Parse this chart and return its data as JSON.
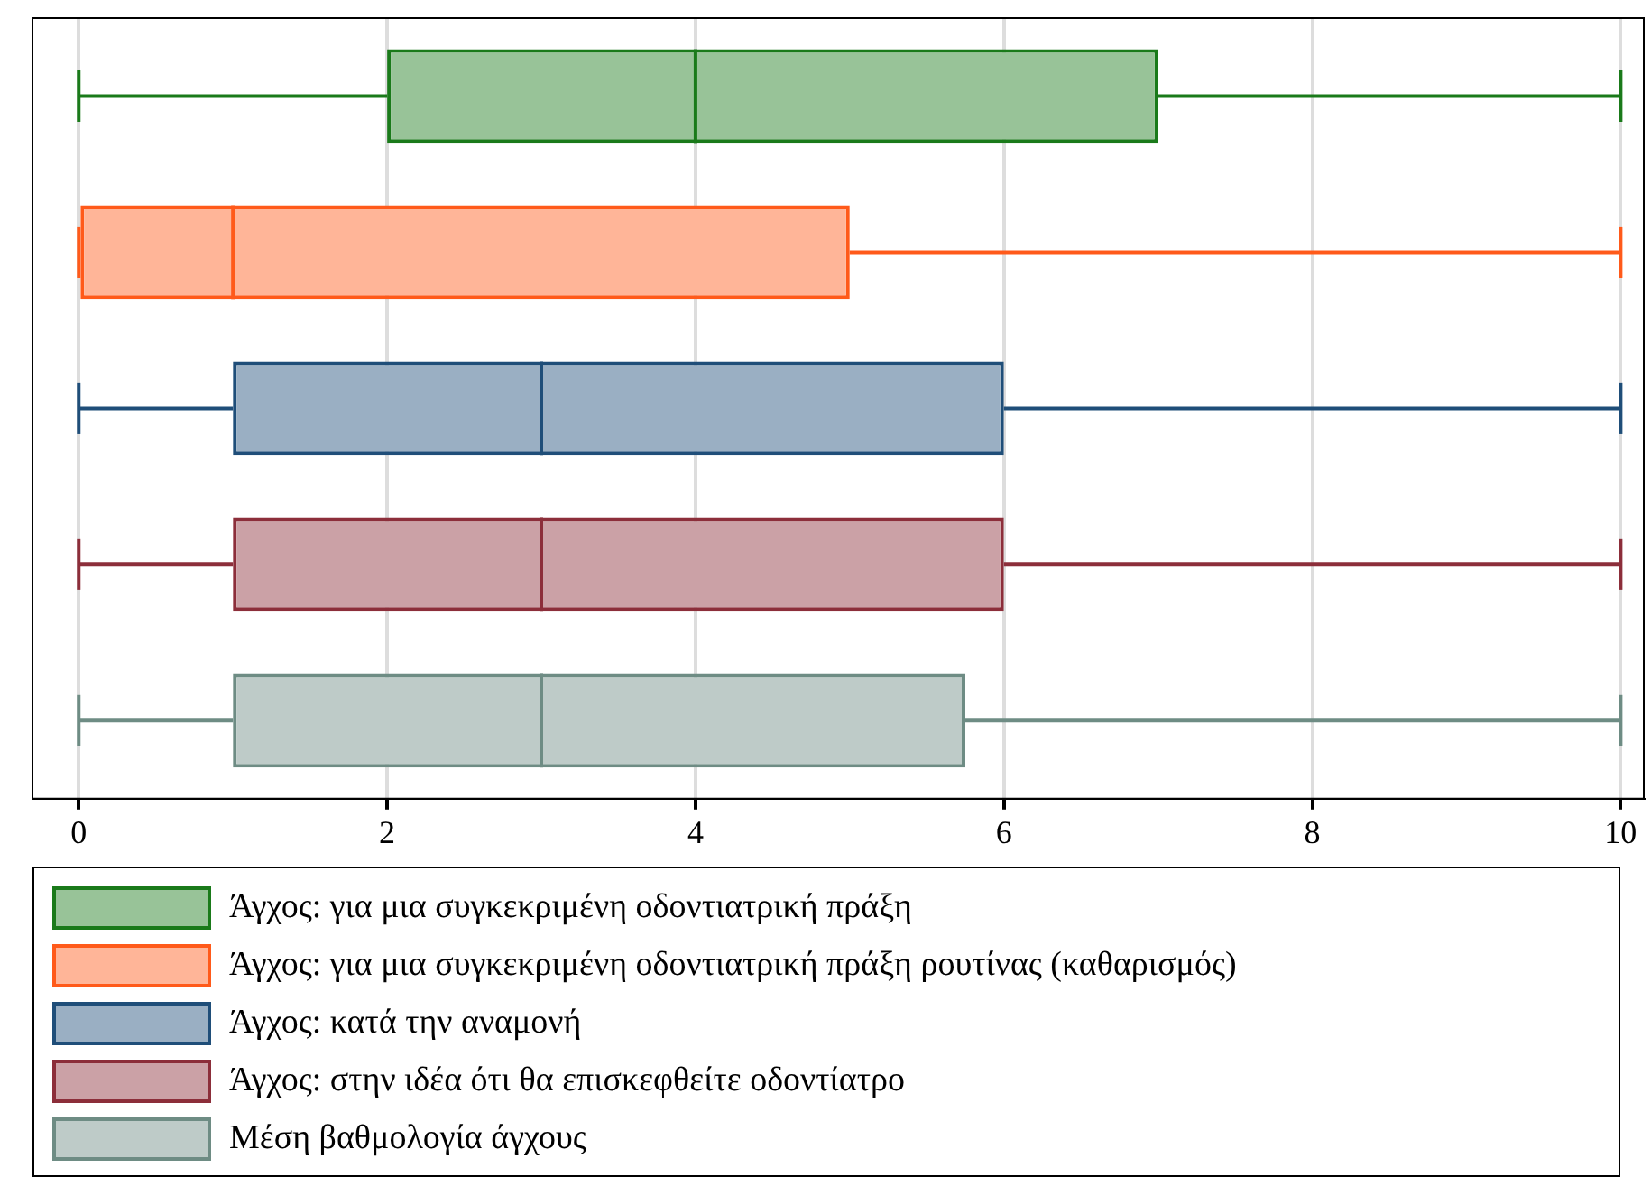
{
  "chart_data": {
    "type": "box",
    "orientation": "horizontal",
    "categories": [
      null,
      null,
      null,
      null,
      null
    ],
    "xlim": [
      -0.3,
      10.15
    ],
    "xticks": [
      0,
      2,
      4,
      6,
      8,
      10
    ],
    "grid": "x",
    "legend": "bottom",
    "tick_labels": "x",
    "series": [
      {
        "name": "Άγχος: για μια συγκεκριμένη οδοντιατρική πράξη",
        "color": "#1a7a1a",
        "boxes": [
          {
            "low": 0,
            "q1": 2,
            "median": 4,
            "q3": 7,
            "high": 10
          },
          null,
          null,
          null,
          null
        ]
      },
      {
        "name": "Άγχος: για μια συγκεκριμένη οδοντιατρική πράξη ρουτίνας (καθαρισμός)",
        "color": "#ff5a1a",
        "boxes": [
          null,
          {
            "low": 0,
            "q1": 0,
            "median": 1,
            "q3": 5,
            "high": 10
          },
          null,
          null,
          null
        ]
      },
      {
        "name": "Άγχος: κατά την αναμονή",
        "color": "#1f4e79",
        "boxes": [
          null,
          null,
          {
            "low": 0,
            "q1": 1,
            "median": 3,
            "q3": 6,
            "high": 10
          },
          null,
          null
        ]
      },
      {
        "name": "Άγχος: στην ιδέα ότι θα επισκεφθείτε οδοντίατρο",
        "color": "#8c2e3a",
        "boxes": [
          null,
          null,
          null,
          {
            "low": 0,
            "q1": 1,
            "median": 3,
            "q3": 6,
            "high": 10
          },
          null
        ]
      },
      {
        "name": "Μέση βαθμολογία άγχους",
        "color": "#6e8c84",
        "boxes": [
          null,
          null,
          null,
          null,
          {
            "low": 0,
            "q1": 1,
            "median": 3,
            "q3": 5.75,
            "high": 10
          }
        ]
      }
    ]
  }
}
